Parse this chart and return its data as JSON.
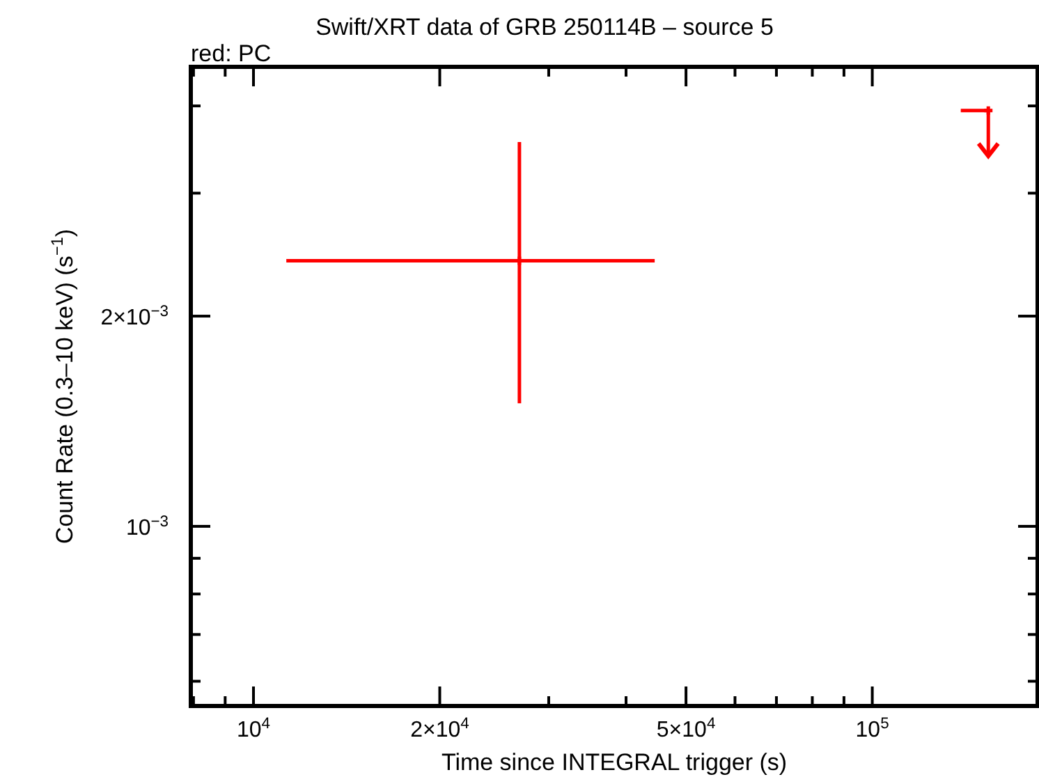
{
  "chart_data": {
    "type": "scatter",
    "title": "Swift/XRT data of GRB 250114B – source 5",
    "subtitle": "red: PC",
    "xlabel": "Time since INTEGRAL trigger (s)",
    "ylabel": "Count Rate (0.3–10 keV) (s$^{−1}$)",
    "log": "xy",
    "marker": "cross",
    "grid": false,
    "xlim": [
      7920,
      185000
    ],
    "ylim": [
      0.000553,
      0.00455
    ],
    "xticks": [
      {
        "value": 8000,
        "label": null
      },
      {
        "value": 9000,
        "label": null
      },
      {
        "value": 10000,
        "label": "10$^{4}$"
      },
      {
        "value": 20000,
        "label": "2×10$^{4}$"
      },
      {
        "value": 30000,
        "label": null
      },
      {
        "value": 40000,
        "label": null
      },
      {
        "value": 50000,
        "label": "5×10$^{4}$"
      },
      {
        "value": 60000,
        "label": null
      },
      {
        "value": 70000,
        "label": null
      },
      {
        "value": 80000,
        "label": null
      },
      {
        "value": 90000,
        "label": null
      },
      {
        "value": 100000,
        "label": "10$^{5}$"
      }
    ],
    "yticks": [
      {
        "value": 0.0006,
        "label": null
      },
      {
        "value": 0.0007,
        "label": null
      },
      {
        "value": 0.0008,
        "label": null
      },
      {
        "value": 0.0009,
        "label": null
      },
      {
        "value": 0.001,
        "label": "10$^{−3}$"
      },
      {
        "value": 0.002,
        "label": "2×10$^{−3}$"
      },
      {
        "value": 0.003,
        "label": null
      },
      {
        "value": 0.004,
        "label": null
      }
    ],
    "series": [
      {
        "color": "#ff0000",
        "x": [
          26900
        ],
        "values": [
          0.0024
        ],
        "xerrors": [
          [
            11300,
            44500
          ]
        ],
        "errors": [
          [
            0.0015,
            0.00355
          ]
        ]
      },
      {
        "color": "#ff0000",
        "x": [
          154000
        ],
        "values": [
          0.00394
        ],
        "xerrors": [
          [
            139000,
            154000
          ]
        ],
        "errors": [
          [
            0.00339,
            0.00394
          ]
        ]
      }
    ]
  }
}
